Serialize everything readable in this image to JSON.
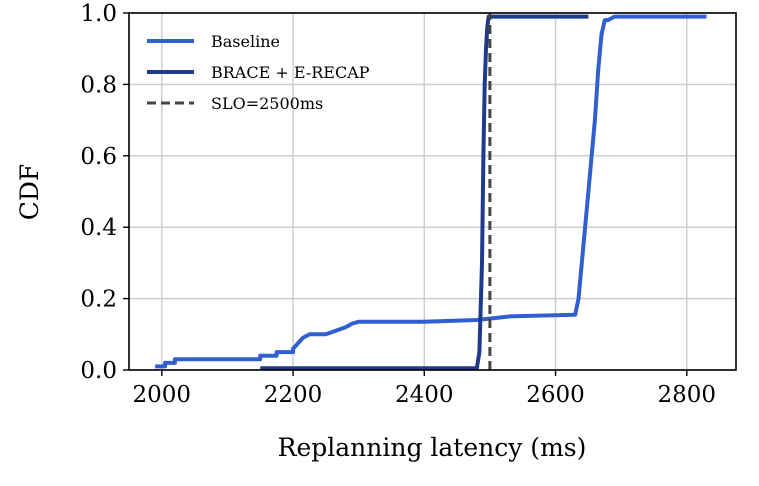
{
  "chart_data": {
    "type": "line",
    "title": "",
    "xlabel": "Replanning latency (ms)",
    "ylabel": "CDF",
    "xlim": [
      1950,
      2875
    ],
    "ylim": [
      0,
      1.0
    ],
    "xticks": [
      "2000",
      "2200",
      "2400",
      "2600",
      "2800"
    ],
    "yticks": [
      "0.0",
      "0.2",
      "0.4",
      "0.6",
      "0.8",
      "1.0"
    ],
    "grid": true,
    "legend_position": "top-left",
    "series": [
      {
        "name": "Baseline",
        "color": "#2f5fd0",
        "style": "solid",
        "x": [
          1990,
          2005,
          2005,
          2020,
          2020,
          2150,
          2150,
          2175,
          2175,
          2200,
          2200,
          2215,
          2225,
          2250,
          2280,
          2290,
          2300,
          2400,
          2480,
          2530,
          2630,
          2635,
          2640,
          2650,
          2660,
          2665,
          2670,
          2675,
          2680,
          2690,
          2700,
          2830
        ],
        "y": [
          0.01,
          0.01,
          0.02,
          0.02,
          0.03,
          0.03,
          0.04,
          0.04,
          0.05,
          0.05,
          0.06,
          0.09,
          0.1,
          0.1,
          0.12,
          0.13,
          0.135,
          0.135,
          0.14,
          0.15,
          0.155,
          0.2,
          0.3,
          0.5,
          0.7,
          0.84,
          0.94,
          0.98,
          0.98,
          0.99,
          0.99,
          0.99
        ]
      },
      {
        "name": "BRACE + E-RECAP",
        "color": "#1f3a8a",
        "style": "solid",
        "x": [
          2150,
          2480,
          2484,
          2488,
          2490,
          2492,
          2494,
          2496,
          2498,
          2500,
          2650
        ],
        "y": [
          0.005,
          0.005,
          0.05,
          0.3,
          0.6,
          0.8,
          0.9,
          0.96,
          0.99,
          0.99,
          0.99
        ]
      },
      {
        "name": "SLO=2500ms",
        "color": "#444444",
        "style": "dashed",
        "x": [
          2500,
          2500
        ],
        "y": [
          0,
          1.0
        ]
      }
    ]
  }
}
